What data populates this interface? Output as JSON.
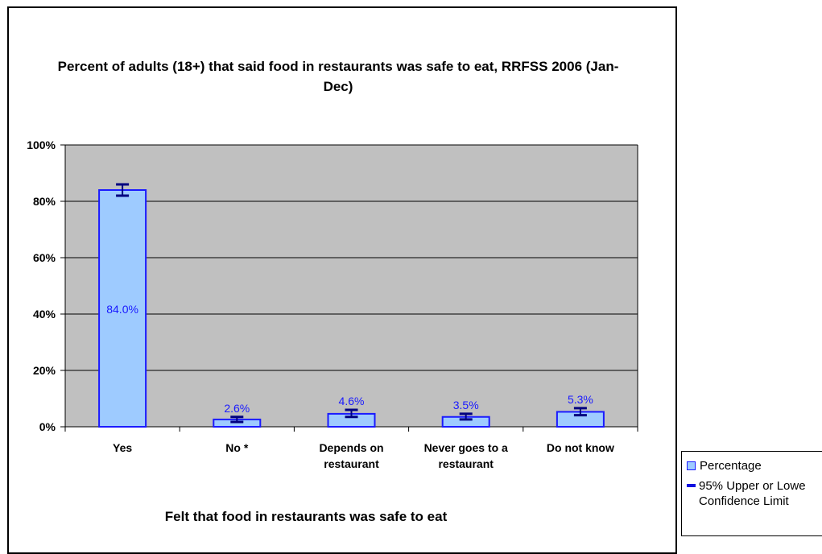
{
  "chart_data": {
    "type": "bar",
    "title": "Percent of adults (18+) that said food in restaurants was safe to eat, RRFSS 2006 (Jan-Dec)",
    "xlabel": "Felt that food in restaurants was safe to eat",
    "ylabel": "",
    "ylim": [
      0,
      100
    ],
    "y_ticks": [
      "0%",
      "20%",
      "40%",
      "60%",
      "80%",
      "100%"
    ],
    "categories": [
      [
        "Yes"
      ],
      [
        "No *"
      ],
      [
        "Depends on",
        "restaurant"
      ],
      [
        "Never goes to a",
        "restaurant"
      ],
      [
        "Do not know"
      ]
    ],
    "series": [
      {
        "name": "Percentage",
        "values": [
          84.0,
          2.6,
          4.6,
          3.5,
          5.3
        ],
        "data_labels": [
          "84.0%",
          "2.6%",
          "4.6%",
          "3.5%",
          "5.3%"
        ],
        "lower_ci": [
          82.0,
          1.7,
          3.5,
          2.6,
          4.1
        ],
        "upper_ci": [
          86.0,
          3.5,
          6.0,
          4.6,
          6.6
        ]
      }
    ],
    "grid": true,
    "legend_position": "bottom-right",
    "legend": [
      "Percentage",
      "95% Upper or Lowe",
      "Confidence Limit"
    ],
    "colors": {
      "bar_fill": "#9ecbff",
      "bar_stroke": "#1a1aff",
      "plot_bg": "#c0c0c0",
      "label": "#1a1aff",
      "error_bar": "#000080"
    }
  }
}
